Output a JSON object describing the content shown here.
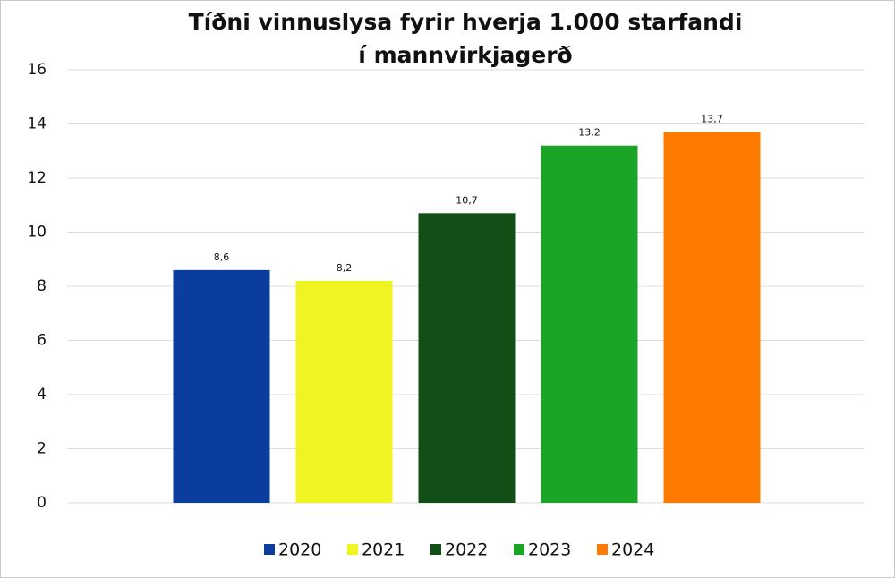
{
  "chart_data": {
    "type": "bar",
    "title": "Tíðni vinnuslysa fyrir hverja 1.000 starfandi í mannvirkjagerð",
    "series": [
      {
        "name": "2020",
        "color": "#0a3d9e",
        "values": [
          8.6
        ],
        "value_labels": [
          "8,6"
        ]
      },
      {
        "name": "2021",
        "color": "#eff522",
        "values": [
          8.2
        ],
        "value_labels": [
          "8,2"
        ]
      },
      {
        "name": "2022",
        "color": "#124f16",
        "values": [
          10.7
        ],
        "value_labels": [
          "10,7"
        ]
      },
      {
        "name": "2023",
        "color": "#1ba526",
        "values": [
          13.2
        ],
        "value_labels": [
          "13,2"
        ]
      },
      {
        "name": "2024",
        "color": "#ff7b00",
        "values": [
          13.7
        ],
        "value_labels": [
          "13,7"
        ]
      }
    ],
    "ylim": [
      0,
      16
    ],
    "yticks": [
      0,
      2,
      4,
      6,
      8,
      10,
      12,
      14,
      16
    ],
    "grid": true,
    "legend": "bottom"
  }
}
